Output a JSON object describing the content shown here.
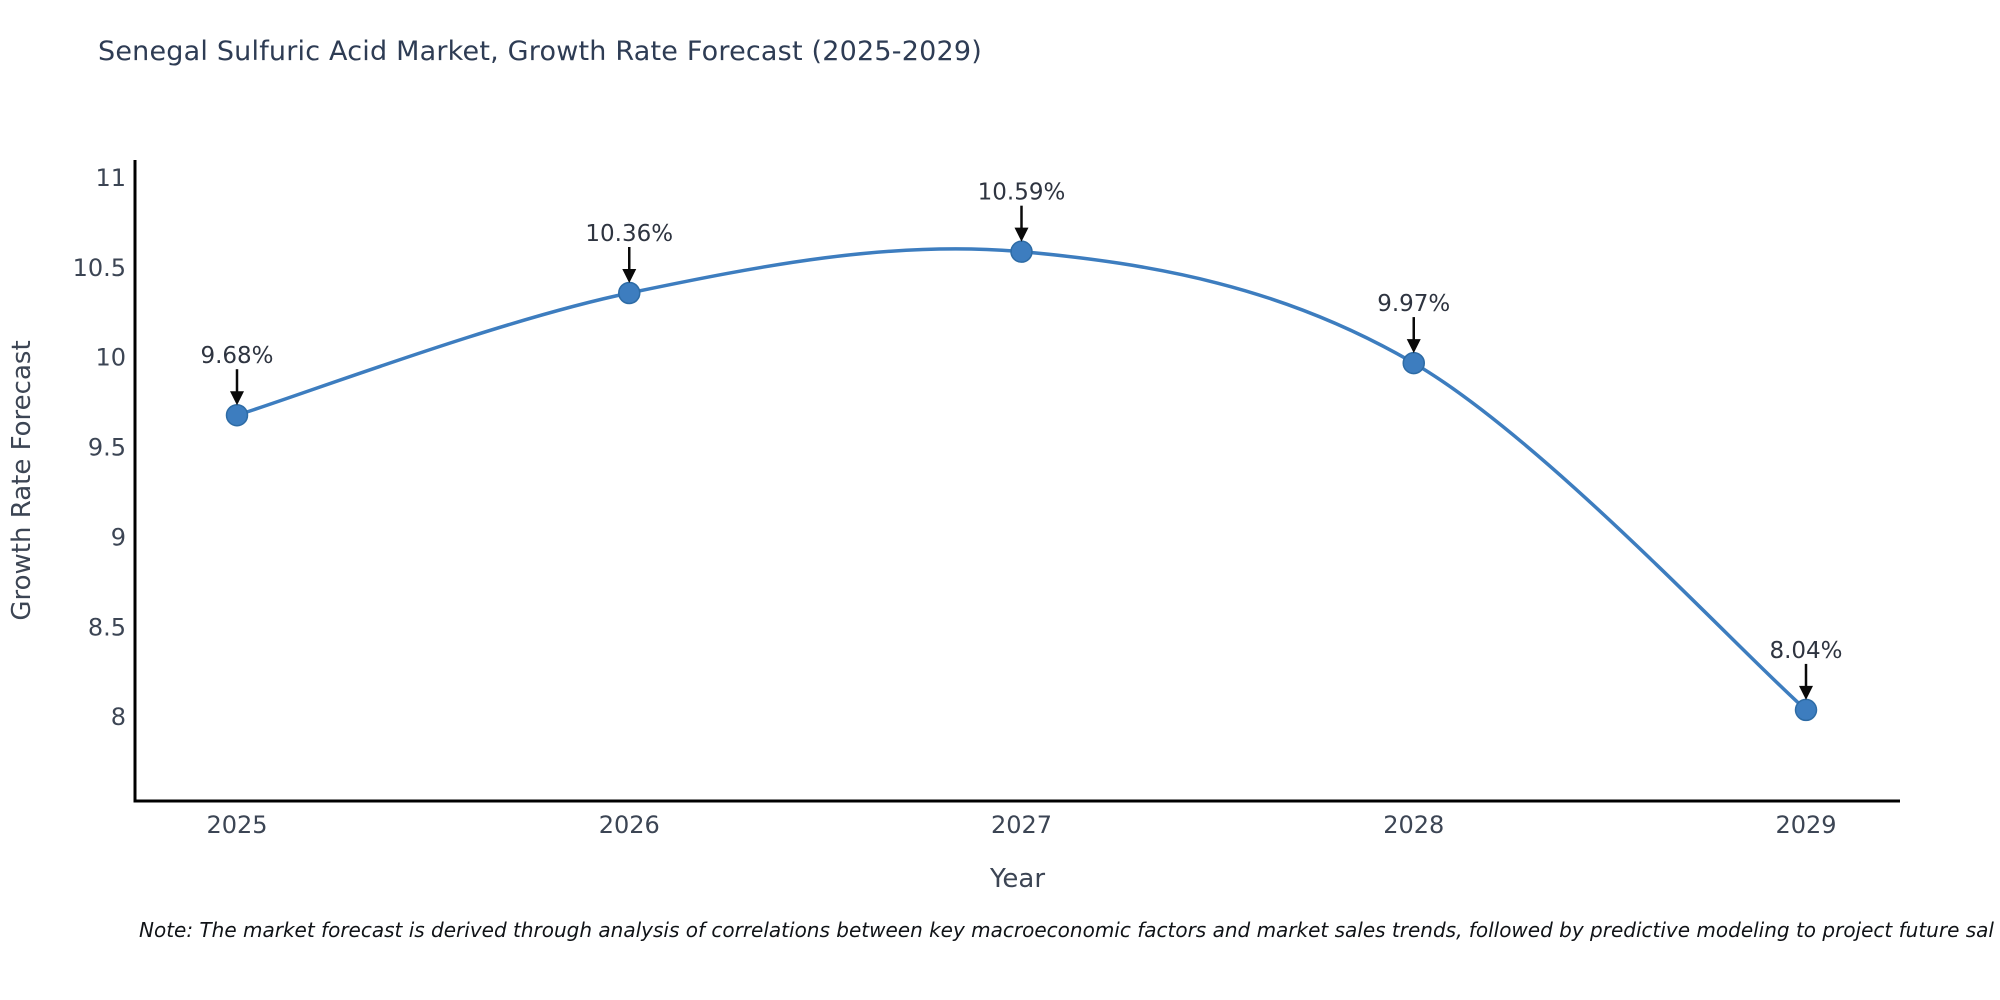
{
  "title": "Senegal Sulfuric Acid Market, Growth Rate Forecast (2025-2029)",
  "note": "Note: The market forecast is derived through analysis of correlations between key macroeconomic factors and market sales trends, followed by predictive modeling to project future sal",
  "chart_data": {
    "type": "line",
    "title": "Senegal Sulfuric Acid Market, Growth Rate Forecast (2025-2029)",
    "xlabel": "Year",
    "ylabel": "Growth Rate Forecast",
    "x": [
      2025,
      2026,
      2027,
      2028,
      2029
    ],
    "xtick_labels": [
      "2025",
      "2026",
      "2027",
      "2028",
      "2029"
    ],
    "yticks": [
      8,
      8.5,
      9,
      9.5,
      10,
      10.5,
      11
    ],
    "ytick_labels": [
      "8",
      "8.5",
      "9",
      "9.5",
      "10",
      "10.5",
      "11"
    ],
    "ylim": [
      7.5,
      11.1
    ],
    "grid": false,
    "legend": "none",
    "smooth_spline": true,
    "series": [
      {
        "name": "Growth Rate Forecast",
        "values": [
          9.68,
          10.36,
          10.59,
          9.97,
          8.04
        ],
        "point_labels": [
          "9.68%",
          "10.36%",
          "10.59%",
          "9.97%",
          "8.04%"
        ]
      }
    ],
    "colors": {
      "line": "#3d7dbf",
      "marker": "#3d7dbf",
      "marker_edge": "#2d6ba5",
      "axis": "#000000",
      "title_text": "#2e3c54",
      "tick_text": "#3c4554",
      "annotation_text": "#2e3440",
      "arrow": "#0a0a0a",
      "note_text": "#101317",
      "background": "#ffffff"
    }
  }
}
